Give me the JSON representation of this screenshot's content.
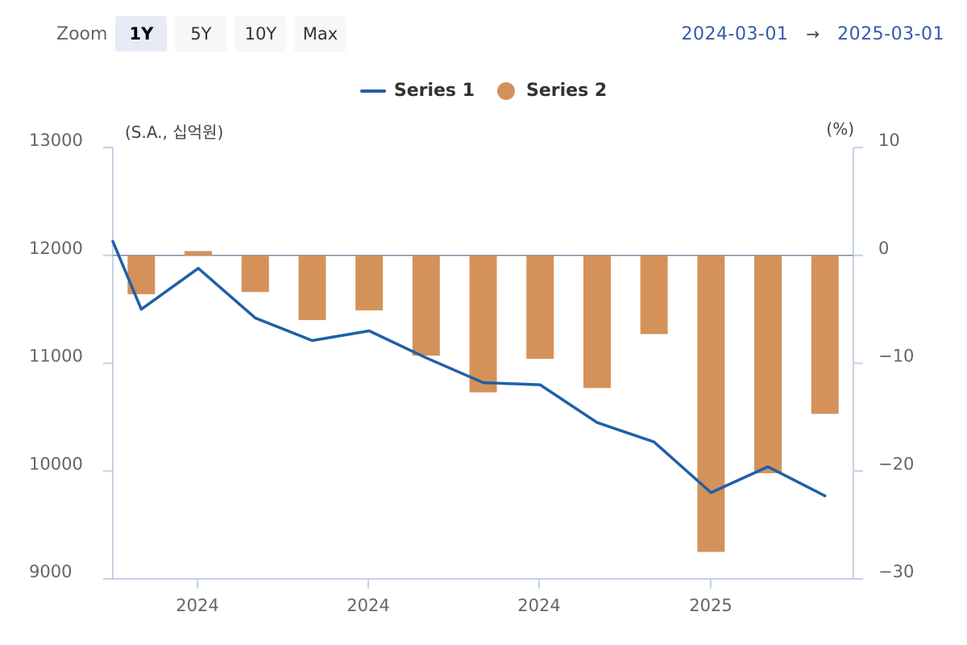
{
  "toolbar": {
    "zoom_label": "Zoom",
    "buttons": [
      {
        "label": "1Y",
        "active": true
      },
      {
        "label": "5Y",
        "active": false
      },
      {
        "label": "10Y",
        "active": false
      },
      {
        "label": "Max",
        "active": false
      }
    ]
  },
  "range": {
    "from": "2024-03-01",
    "arrow": "→",
    "to": "2025-03-01"
  },
  "colors": {
    "series1": "#1f5fa8",
    "series2": "#d4925a",
    "axis": "#c6d2e6",
    "zero_line": "#7f8fa6",
    "range_text": "#335cad"
  },
  "chart_data": {
    "type": "bar",
    "combo": "bar-line",
    "x_tick_labels": [
      "2024",
      "2024",
      "2024",
      "2025"
    ],
    "left_axis": {
      "unit_label": "(S.A., 십억원)",
      "ylim": [
        9000,
        13000
      ],
      "ticks": [
        13000,
        12000,
        11000,
        10000,
        9000
      ]
    },
    "right_axis": {
      "unit_label": "(%)",
      "ylim": [
        -30,
        10
      ],
      "ticks": [
        10,
        0,
        -10,
        -20,
        -30
      ]
    },
    "grid": false,
    "legend_placement": "top-center",
    "series": [
      {
        "name": "Series 1",
        "type": "line",
        "axis": "left",
        "x": [
          "2024-03",
          "2024-04",
          "2024-05",
          "2024-06",
          "2024-07",
          "2024-08",
          "2024-09",
          "2024-10",
          "2024-11",
          "2024-12",
          "2025-01",
          "2025-02",
          "2025-03",
          "2025-04"
        ],
        "values": [
          12130,
          11500,
          11880,
          11420,
          11210,
          11300,
          11050,
          10820,
          10800,
          10450,
          10270,
          9800,
          10040,
          9770
        ]
      },
      {
        "name": "Series 2",
        "type": "bar",
        "axis": "right",
        "x": [
          "2024-04",
          "2024-05",
          "2024-06",
          "2024-07",
          "2024-08",
          "2024-09",
          "2024-10",
          "2024-11",
          "2024-12",
          "2025-01",
          "2025-02",
          "2025-03",
          "2025-04"
        ],
        "values": [
          -3.6,
          0.4,
          -3.4,
          -6.0,
          -5.1,
          -9.3,
          -12.7,
          -9.6,
          -12.3,
          -7.3,
          -27.5,
          -20.2,
          -14.7
        ]
      }
    ]
  }
}
